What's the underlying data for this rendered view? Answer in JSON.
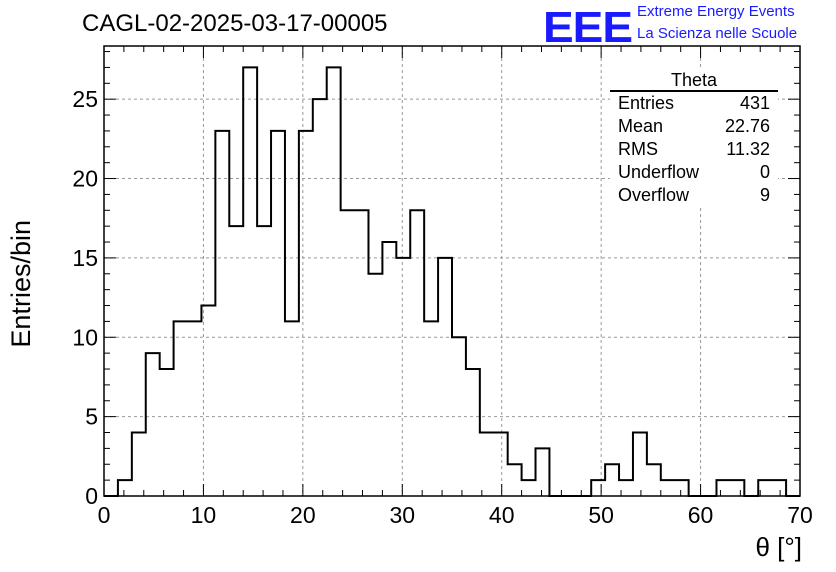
{
  "title": "CAGL-02-2025-03-17-00005",
  "logo": {
    "text": "EEE",
    "line1": "Extreme Energy Events",
    "line2": "La Scienza nelle Scuole",
    "color": "#1a1aff"
  },
  "stats": {
    "title": "Theta",
    "rows": [
      {
        "label": "Entries",
        "value": "431"
      },
      {
        "label": "Mean",
        "value": "22.76"
      },
      {
        "label": "RMS",
        "value": "11.32"
      },
      {
        "label": "Underflow",
        "value": "0"
      },
      {
        "label": "Overflow",
        "value": "9"
      }
    ]
  },
  "chart_data": {
    "type": "bar",
    "histogram": true,
    "title": "CAGL-02-2025-03-17-00005",
    "xlabel": "θ [°]",
    "ylabel": "Entries/bin",
    "xlim": [
      0,
      70
    ],
    "ylim": [
      0,
      28.35
    ],
    "bin_width": 1.4,
    "x_ticks": [
      0,
      10,
      20,
      30,
      40,
      50,
      60,
      70
    ],
    "y_ticks": [
      0,
      5,
      10,
      15,
      20,
      25
    ],
    "grid": true,
    "values": [
      0,
      1,
      4,
      9,
      8,
      11,
      11,
      12,
      23,
      17,
      27,
      17,
      23,
      11,
      23,
      25,
      27,
      18,
      18,
      14,
      16,
      15,
      18,
      11,
      15,
      10,
      8,
      4,
      4,
      2,
      1,
      3,
      0,
      0,
      0,
      1,
      2,
      1,
      4,
      2,
      1,
      1,
      0,
      0,
      1,
      1,
      0,
      1,
      1,
      0
    ]
  }
}
